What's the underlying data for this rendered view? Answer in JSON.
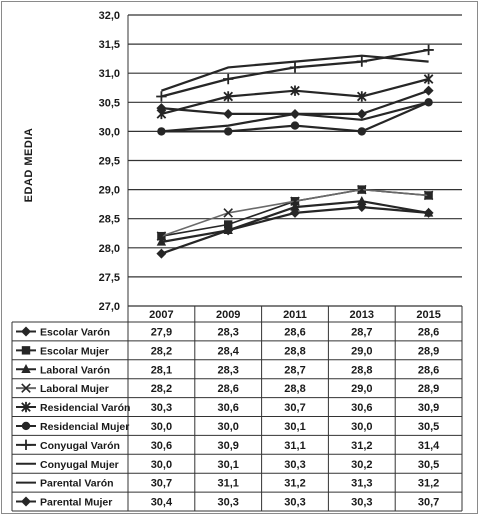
{
  "chart_data": {
    "type": "line",
    "ylabel": "EDAD MEDIA",
    "xlabel": "",
    "title": "",
    "ylim": [
      27.0,
      32.0
    ],
    "yticks": [
      "27,0",
      "27,5",
      "28,0",
      "28,5",
      "29,0",
      "29,5",
      "30,0",
      "30,5",
      "31,0",
      "31,5",
      "32,0"
    ],
    "categories": [
      "2007",
      "2009",
      "2011",
      "2013",
      "2015"
    ],
    "grid": true,
    "legend_placement": "data table below chart",
    "line_color": "#262626",
    "series": [
      {
        "name": "Escolar Varón",
        "marker": "diamond",
        "values": [
          27.9,
          28.3,
          28.6,
          28.7,
          28.6
        ],
        "labels": [
          "27,9",
          "28,3",
          "28,6",
          "28,7",
          "28,6"
        ]
      },
      {
        "name": "Escolar Mujer",
        "marker": "square",
        "values": [
          28.2,
          28.4,
          28.8,
          29.0,
          28.9
        ],
        "labels": [
          "28,2",
          "28,4",
          "28,8",
          "29,0",
          "28,9"
        ]
      },
      {
        "name": "Laboral Varón",
        "marker": "triangle",
        "values": [
          28.1,
          28.3,
          28.7,
          28.8,
          28.6
        ],
        "labels": [
          "28,1",
          "28,3",
          "28,7",
          "28,8",
          "28,6"
        ]
      },
      {
        "name": "Laboral Mujer",
        "marker": "x",
        "values": [
          28.2,
          28.6,
          28.8,
          29.0,
          28.9
        ],
        "labels": [
          "28,2",
          "28,6",
          "28,8",
          "29,0",
          "28,9"
        ]
      },
      {
        "name": "Residencial Varón",
        "marker": "star",
        "values": [
          30.3,
          30.6,
          30.7,
          30.6,
          30.9
        ],
        "labels": [
          "30,3",
          "30,6",
          "30,7",
          "30,6",
          "30,9"
        ]
      },
      {
        "name": "Residencial Mujer",
        "marker": "circle",
        "values": [
          30.0,
          30.0,
          30.1,
          30.0,
          30.5
        ],
        "labels": [
          "30,0",
          "30,0",
          "30,1",
          "30,0",
          "30,5"
        ]
      },
      {
        "name": "Conyugal Varón",
        "marker": "plus",
        "values": [
          30.6,
          30.9,
          31.1,
          31.2,
          31.4
        ],
        "labels": [
          "30,6",
          "30,9",
          "31,1",
          "31,2",
          "31,4"
        ]
      },
      {
        "name": "Conyugal Mujer",
        "marker": "none",
        "values": [
          30.0,
          30.1,
          30.3,
          30.2,
          30.5
        ],
        "labels": [
          "30,0",
          "30,1",
          "30,3",
          "30,2",
          "30,5"
        ]
      },
      {
        "name": "Parental Varón",
        "marker": "none",
        "values": [
          30.7,
          31.1,
          31.2,
          31.3,
          31.2
        ],
        "labels": [
          "30,7",
          "31,1",
          "31,2",
          "31,3",
          "31,2"
        ]
      },
      {
        "name": "Parental Mujer",
        "marker": "diamond",
        "values": [
          30.4,
          30.3,
          30.3,
          30.3,
          30.7
        ],
        "labels": [
          "30,4",
          "30,3",
          "30,3",
          "30,3",
          "30,7"
        ]
      }
    ]
  }
}
